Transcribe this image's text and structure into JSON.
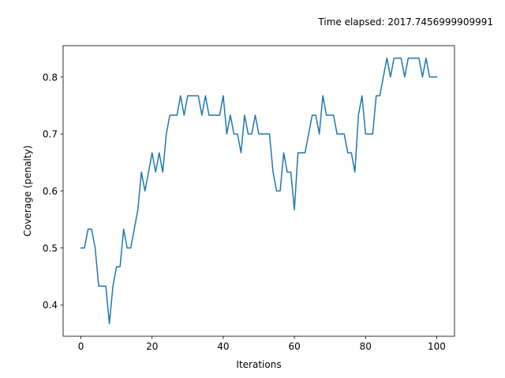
{
  "chart_data": {
    "type": "line",
    "title": "Time elapsed: 2017.7456999909991",
    "xlabel": "Iterations",
    "ylabel": "Coverage (penalty)",
    "xlim": [
      -5,
      105
    ],
    "ylim": [
      0.345,
      0.855
    ],
    "xticks": [
      0,
      20,
      40,
      60,
      80,
      100
    ],
    "xtick_labels": [
      "0",
      "20",
      "40",
      "60",
      "80",
      "100"
    ],
    "yticks": [
      0.4,
      0.5,
      0.6,
      0.7,
      0.8
    ],
    "ytick_labels": [
      "0.4",
      "0.5",
      "0.6",
      "0.7",
      "0.8"
    ],
    "grid": false,
    "series": [
      {
        "color": "#1f77b4",
        "x": [
          0,
          1,
          2,
          3,
          4,
          5,
          6,
          7,
          8,
          9,
          10,
          11,
          12,
          13,
          14,
          15,
          16,
          17,
          18,
          19,
          20,
          21,
          22,
          23,
          24,
          25,
          26,
          27,
          28,
          29,
          30,
          31,
          32,
          33,
          34,
          35,
          36,
          37,
          38,
          39,
          40,
          41,
          42,
          43,
          44,
          45,
          46,
          47,
          48,
          49,
          50,
          51,
          52,
          53,
          54,
          55,
          56,
          57,
          58,
          59,
          60,
          61,
          62,
          63,
          64,
          65,
          66,
          67,
          68,
          69,
          70,
          71,
          72,
          73,
          74,
          75,
          76,
          77,
          78,
          79,
          80,
          81,
          82,
          83,
          84,
          85,
          86,
          87,
          88,
          89,
          90,
          91,
          92,
          93,
          94,
          95,
          96,
          97,
          98,
          99,
          100
        ],
        "y": [
          0.5,
          0.5,
          0.533,
          0.533,
          0.5,
          0.433,
          0.433,
          0.433,
          0.367,
          0.433,
          0.467,
          0.467,
          0.533,
          0.5,
          0.5,
          0.533,
          0.567,
          0.633,
          0.6,
          0.633,
          0.667,
          0.633,
          0.667,
          0.633,
          0.7,
          0.733,
          0.733,
          0.733,
          0.767,
          0.733,
          0.767,
          0.767,
          0.767,
          0.767,
          0.733,
          0.767,
          0.733,
          0.733,
          0.733,
          0.733,
          0.767,
          0.7,
          0.733,
          0.7,
          0.7,
          0.667,
          0.733,
          0.7,
          0.7,
          0.733,
          0.7,
          0.7,
          0.7,
          0.7,
          0.633,
          0.6,
          0.6,
          0.667,
          0.633,
          0.633,
          0.567,
          0.667,
          0.667,
          0.667,
          0.7,
          0.733,
          0.733,
          0.7,
          0.767,
          0.733,
          0.733,
          0.733,
          0.7,
          0.7,
          0.7,
          0.667,
          0.667,
          0.633,
          0.733,
          0.767,
          0.7,
          0.7,
          0.7,
          0.767,
          0.767,
          0.8,
          0.833,
          0.8,
          0.833,
          0.833,
          0.833,
          0.8,
          0.833,
          0.833,
          0.833,
          0.833,
          0.8,
          0.833,
          0.8,
          0.8,
          0.8
        ]
      }
    ]
  }
}
